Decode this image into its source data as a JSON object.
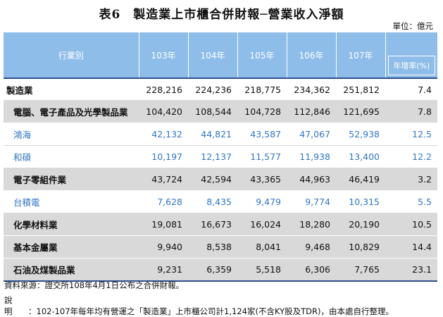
{
  "title": "表6　製造業上市櫃合併財報─營業收入淨額",
  "unit": "單位：億元",
  "table": {
    "headers": [
      "行業別",
      "103年",
      "104年",
      "105年",
      "106年",
      "107年"
    ],
    "rate_header": "年增率(%)",
    "rows": [
      {
        "name": "製造業",
        "values": [
          "228,216",
          "224,236",
          "218,775",
          "234,362",
          "251,812",
          "7.4"
        ]
      },
      {
        "name": "電腦、電子產品及光學製品業",
        "values": [
          "104,420",
          "108,544",
          "104,728",
          "112,846",
          "121,695",
          "7.8"
        ]
      },
      {
        "name": "鴻海",
        "values": [
          "42,132",
          "44,821",
          "43,587",
          "47,067",
          "52,938",
          "12.5"
        ]
      },
      {
        "name": "和碩",
        "values": [
          "10,197",
          "12,137",
          "11,577",
          "11,938",
          "13,400",
          "12.2"
        ]
      },
      {
        "name": "電子零組件業",
        "values": [
          "43,724",
          "42,594",
          "43,365",
          "44,963",
          "46,419",
          "3.2"
        ]
      },
      {
        "name": "台積電",
        "values": [
          "7,628",
          "8,435",
          "9,479",
          "9,774",
          "10,315",
          "5.5"
        ]
      },
      {
        "name": "化學材料業",
        "values": [
          "19,081",
          "16,673",
          "16,024",
          "18,280",
          "20,190",
          "10.5"
        ]
      },
      {
        "name": "基本金屬業",
        "values": [
          "9,940",
          "8,538",
          "8,041",
          "9,468",
          "10,829",
          "14.4"
        ]
      },
      {
        "name": "石油及煤製品業",
        "values": [
          "9,231",
          "6,359",
          "5,518",
          "6,306",
          "7,765",
          "23.1"
        ]
      }
    ]
  },
  "notes": {
    "source": "資料來源：證交所108年4月1日公布之合併財報。",
    "explain_label": "說明",
    "explain_text": "：102-107年每年均有營運之「製造業」上市櫃公司計1,124家(不含KY股及TDR)，由本處自行整理。"
  }
}
